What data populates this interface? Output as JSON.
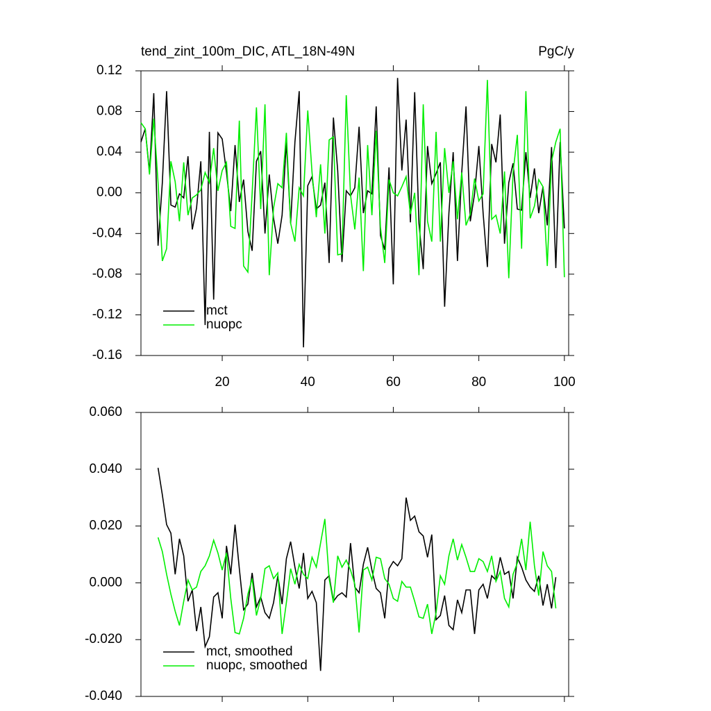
{
  "chart_data": [
    {
      "type": "line",
      "title": "tend_zint_100m_DIC, ATL_18N-49N",
      "subtitle": "PgC/y",
      "x": [
        1,
        2,
        3,
        4,
        5,
        6,
        7,
        8,
        9,
        10,
        11,
        12,
        13,
        14,
        15,
        16,
        17,
        18,
        19,
        20,
        21,
        22,
        23,
        24,
        25,
        26,
        27,
        28,
        29,
        30,
        31,
        32,
        33,
        34,
        35,
        36,
        37,
        38,
        39,
        40,
        41,
        42,
        43,
        44,
        45,
        46,
        47,
        48,
        49,
        50,
        51,
        52,
        53,
        54,
        55,
        56,
        57,
        58,
        59,
        60,
        61,
        62,
        63,
        64,
        65,
        66,
        67,
        68,
        69,
        70,
        71,
        72,
        73,
        74,
        75,
        76,
        77,
        78,
        79,
        80,
        81,
        82,
        83,
        84,
        85,
        86,
        87,
        88,
        89,
        90,
        91,
        92,
        93,
        94,
        95,
        96,
        97,
        98,
        99,
        100
      ],
      "series": [
        {
          "name": "mct",
          "color": "#000000",
          "values": [
            0.05,
            0.063,
            0.02,
            0.098,
            -0.052,
            0.01,
            0.1,
            -0.012,
            -0.014,
            -0.001,
            -0.005,
            0.036,
            -0.036,
            -0.015,
            0.031,
            -0.13,
            0.06,
            -0.105,
            0.059,
            0.053,
            0.02,
            -0.018,
            0.047,
            -0.009,
            0.013,
            -0.038,
            -0.057,
            0.031,
            0.041,
            -0.04,
            0.018,
            -0.025,
            -0.05,
            -0.022,
            0.05,
            -0.03,
            0.05,
            0.1,
            -0.152,
            0.007,
            0.016,
            -0.016,
            -0.012,
            0.01,
            -0.069,
            0.074,
            0.022,
            -0.068,
            0.002,
            -0.003,
            0.005,
            0.065,
            -0.02,
            0.002,
            -0.001,
            0.085,
            -0.042,
            -0.056,
            0.025,
            -0.09,
            0.113,
            0.022,
            0.072,
            -0.029,
            0.099,
            -0.03,
            -0.075,
            0.046,
            0.009,
            0.019,
            0.03,
            -0.112,
            -0.02,
            0.04,
            -0.067,
            0.02,
            0.085,
            -0.028,
            -0.001,
            0.046,
            -0.02,
            -0.073,
            0.048,
            0.03,
            0.077,
            -0.05,
            0.01,
            0.029,
            -0.016,
            -0.017,
            0.04,
            -0.005,
            0.024,
            -0.02,
            0.006,
            -0.032,
            0.045,
            -0.074,
            0.05,
            -0.035
          ]
        },
        {
          "name": "nuopc",
          "color": "#00ee00",
          "values": [
            0.069,
            0.063,
            0.018,
            0.073,
            0.01,
            -0.067,
            -0.055,
            0.031,
            0.011,
            -0.028,
            0.03,
            -0.022,
            -0.005,
            -0.002,
            0.003,
            0.02,
            0.01,
            0.044,
            0.002,
            0.022,
            0.03,
            -0.033,
            -0.035,
            0.071,
            -0.072,
            -0.078,
            0.0,
            0.084,
            -0.016,
            0.087,
            -0.081,
            -0.015,
            0.009,
            0.005,
            0.059,
            -0.03,
            -0.048,
            0.005,
            -0.003,
            0.081,
            0.02,
            -0.024,
            0.028,
            -0.04,
            0.052,
            0.055,
            -0.061,
            -0.06,
            0.096,
            -0.002,
            -0.036,
            0.015,
            -0.077,
            0.047,
            -0.022,
            0.061,
            -0.034,
            -0.069,
            0.013,
            0.0,
            -0.003,
            0.006,
            0.016,
            -0.021,
            0.0,
            -0.081,
            0.087,
            -0.028,
            -0.048,
            0.06,
            -0.048,
            0.044,
            0.0,
            0.031,
            -0.026,
            0.02,
            -0.032,
            -0.021,
            0.014,
            -0.008,
            -0.001,
            0.111,
            -0.026,
            -0.022,
            -0.04,
            0.021,
            -0.084,
            0.02,
            0.057,
            -0.055,
            0.1,
            -0.025,
            -0.013,
            0.013,
            0.006,
            -0.072,
            0.031,
            0.05,
            0.063,
            -0.083
          ]
        }
      ],
      "xlim": [
        1,
        101
      ],
      "xticks": [
        20,
        40,
        60,
        80,
        100
      ],
      "xtick_labels": true,
      "ylim": [
        -0.16,
        0.12
      ],
      "yticks": [
        -0.16,
        -0.12,
        -0.08,
        -0.04,
        {
          "value": 0,
          "label": "0.00"
        },
        0.04,
        0.08,
        0.12
      ],
      "legend": "lower left"
    },
    {
      "type": "line",
      "x": [
        5,
        6,
        7,
        8,
        9,
        10,
        11,
        12,
        13,
        14,
        15,
        16,
        17,
        18,
        19,
        20,
        21,
        22,
        23,
        24,
        25,
        26,
        27,
        28,
        29,
        30,
        31,
        32,
        33,
        34,
        35,
        36,
        37,
        38,
        39,
        40,
        41,
        42,
        43,
        44,
        45,
        46,
        47,
        48,
        49,
        50,
        51,
        52,
        53,
        54,
        55,
        56,
        57,
        58,
        59,
        60,
        61,
        62,
        63,
        64,
        65,
        66,
        67,
        68,
        69,
        70,
        71,
        72,
        73,
        74,
        75,
        76,
        77,
        78,
        79,
        80,
        81,
        82,
        83,
        84,
        85,
        86,
        87,
        88,
        89,
        90,
        91,
        92,
        93,
        94,
        95,
        96,
        97,
        98
      ],
      "series": [
        {
          "name": "mct, smoothed",
          "color": "#000000",
          "values": [
            0.0405,
            0.031,
            0.0205,
            0.0175,
            0.003,
            0.0155,
            0.0095,
            -0.0065,
            -0.0025,
            -0.017,
            -0.0085,
            -0.0225,
            -0.019,
            -0.005,
            -0.0035,
            -0.0125,
            0.013,
            0.003,
            0.0205,
            0.005,
            -0.0095,
            -0.0075,
            0.0035,
            -0.0085,
            -0.005,
            -0.0105,
            -0.0125,
            -0.007,
            0.0025,
            -0.0075,
            0.0085,
            0.0145,
            0.0055,
            -0.002,
            0.0105,
            -0.0055,
            -0.003,
            -0.007,
            -0.031,
            0.001,
            0.0025,
            -0.0065,
            -0.0045,
            -0.0035,
            -0.005,
            0.014,
            -0.0015,
            -0.0035,
            0.0065,
            0.0125,
            0.0045,
            -0.002,
            -0.0035,
            -0.0125,
            0.005,
            0.0075,
            0.006,
            0.0085,
            0.03,
            0.022,
            0.0235,
            0.018,
            0.0165,
            0.009,
            0.017,
            -0.013,
            -0.0115,
            -0.0045,
            -0.015,
            -0.0165,
            -0.006,
            -0.0105,
            -0.0025,
            -0.0025,
            -0.018,
            -0.0025,
            -0.0005,
            -0.0055,
            0.0025,
            0.001,
            0.009,
            0.003,
            0.004,
            -0.0055,
            0.009,
            0.0055,
            0.001,
            -0.0015,
            -0.003,
            0.0025,
            -0.008,
            -0.0005,
            -0.009,
            0.002
          ]
        },
        {
          "name": "nuopc, smoothed",
          "color": "#00ee00",
          "values": [
            0.016,
            0.011,
            0.003,
            -0.004,
            -0.01,
            -0.015,
            -0.0065,
            0.001,
            -0.0025,
            -0.0015,
            0.004,
            0.006,
            0.0095,
            0.015,
            0.0105,
            0.0045,
            0.0105,
            -0.0055,
            -0.0175,
            -0.018,
            -0.0125,
            -0.004,
            0.0015,
            -0.0115,
            -0.0055,
            0.005,
            0.006,
            0.0015,
            0.0035,
            -0.018,
            -0.007,
            0.005,
            -0.0005,
            0.0065,
            0.003,
            0.0015,
            0.009,
            0.0055,
            0.014,
            0.0225,
            0.0015,
            -0.007,
            0.0095,
            0.0055,
            0.008,
            0.0045,
            -0.0005,
            -0.0175,
            0.0045,
            0.0055,
            0.001,
            0.009,
            0.0085,
            0.0015,
            -0.0005,
            -0.0055,
            -0.0065,
            0.0005,
            -0.0015,
            -0.0015,
            -0.0065,
            -0.012,
            -0.0125,
            -0.0075,
            -0.018,
            -0.0105,
            0.0025,
            -0.0005,
            0.0095,
            0.0155,
            0.008,
            0.0135,
            0.009,
            0.004,
            0.004,
            0.0085,
            0.0075,
            0.004,
            0.0095,
            0.0005,
            0.004,
            -0.0055,
            -0.0085,
            0.003,
            0.007,
            0.0155,
            0.0045,
            0.0215,
            0.006,
            -0.0045,
            0.011,
            0.006,
            0.004,
            -0.009
          ]
        }
      ],
      "xlim": [
        1,
        101
      ],
      "xticks": [
        20,
        40,
        60,
        80,
        100
      ],
      "xtick_labels": false,
      "ylim": [
        -0.04,
        0.06
      ],
      "yticks": [
        {
          "value": -0.04,
          "label": "-0.040"
        },
        {
          "value": -0.02,
          "label": "-0.020"
        },
        {
          "value": 0,
          "label": "0.000"
        },
        {
          "value": 0.02,
          "label": "0.020"
        },
        {
          "value": 0.04,
          "label": "0.040"
        },
        {
          "value": 0.06,
          "label": "0.060"
        }
      ],
      "legend": "lower left"
    }
  ]
}
